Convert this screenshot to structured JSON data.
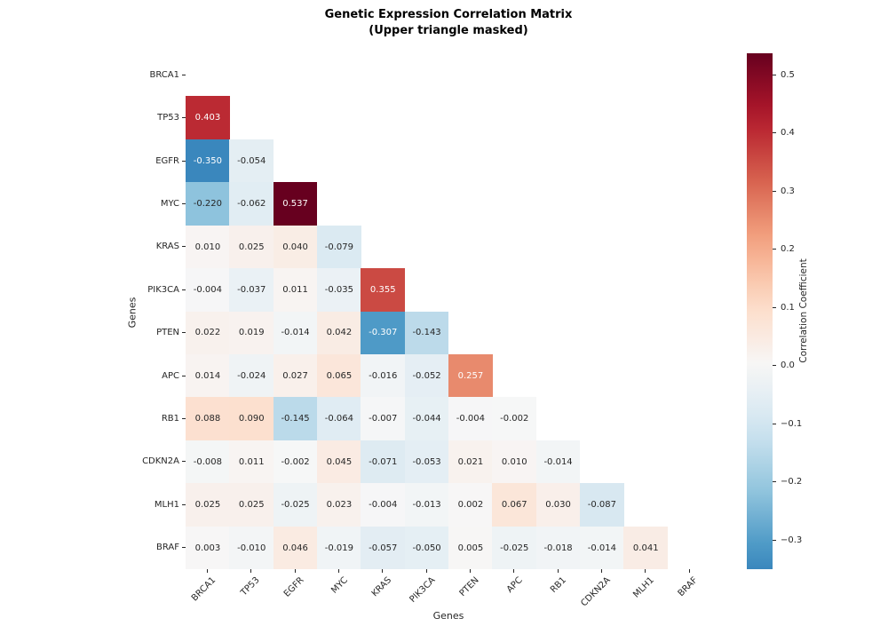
{
  "title": {
    "line1": "Genetic Expression Correlation Matrix",
    "line2": "(Upper triangle masked)"
  },
  "axes": {
    "x_label": "Genes",
    "y_label": "Genes"
  },
  "colorbar": {
    "label": "Correlation Coefficient",
    "tick_values": [
      0.5,
      0.4,
      0.3,
      0.2,
      0.1,
      0.0,
      -0.1,
      -0.2,
      -0.3
    ]
  },
  "chart_data": {
    "type": "heatmap",
    "title": "Genetic Expression Correlation Matrix (Upper triangle masked)",
    "xlabel": "Genes",
    "ylabel": "Genes",
    "mask": "upper-triangle-and-diagonal-masked",
    "value_format": ".3f",
    "colorbar_label": "Correlation Coefficient",
    "color_scale": {
      "vmin": -0.35,
      "vmax": 0.537,
      "center": 0,
      "colormap_rdbu_r": [
        "#053061",
        "#2166ac",
        "#4393c3",
        "#92c5de",
        "#d1e5f0",
        "#f7f7f7",
        "#fddbc7",
        "#f4a582",
        "#d6604d",
        "#b2182b",
        "#67001f"
      ]
    },
    "genes": [
      "BRCA1",
      "TP53",
      "EGFR",
      "MYC",
      "KRAS",
      "PIK3CA",
      "PTEN",
      "APC",
      "RB1",
      "CDKN2A",
      "MLH1",
      "BRAF"
    ],
    "rows": [
      {
        "gene": "BRCA1",
        "values": []
      },
      {
        "gene": "TP53",
        "values": [
          0.403
        ]
      },
      {
        "gene": "EGFR",
        "values": [
          -0.35,
          -0.054
        ]
      },
      {
        "gene": "MYC",
        "values": [
          -0.22,
          -0.062,
          0.537
        ]
      },
      {
        "gene": "KRAS",
        "values": [
          0.01,
          0.025,
          0.04,
          -0.079
        ]
      },
      {
        "gene": "PIK3CA",
        "values": [
          -0.004,
          -0.037,
          0.011,
          -0.035,
          0.355
        ]
      },
      {
        "gene": "PTEN",
        "values": [
          0.022,
          0.019,
          -0.014,
          0.042,
          -0.307,
          -0.143
        ]
      },
      {
        "gene": "APC",
        "values": [
          0.014,
          -0.024,
          0.027,
          0.065,
          -0.016,
          -0.052,
          0.257
        ]
      },
      {
        "gene": "RB1",
        "values": [
          0.088,
          0.09,
          -0.145,
          -0.064,
          -0.007,
          -0.044,
          -0.004,
          -0.002
        ]
      },
      {
        "gene": "CDKN2A",
        "values": [
          -0.008,
          0.011,
          -0.002,
          0.045,
          -0.071,
          -0.053,
          0.021,
          0.01,
          -0.014
        ]
      },
      {
        "gene": "MLH1",
        "values": [
          0.025,
          0.025,
          -0.025,
          0.023,
          -0.004,
          -0.013,
          0.002,
          0.067,
          0.03,
          -0.087
        ]
      },
      {
        "gene": "BRAF",
        "values": [
          0.003,
          -0.01,
          0.046,
          -0.019,
          -0.057,
          -0.05,
          0.005,
          -0.025,
          -0.018,
          -0.014,
          0.041
        ]
      }
    ]
  }
}
